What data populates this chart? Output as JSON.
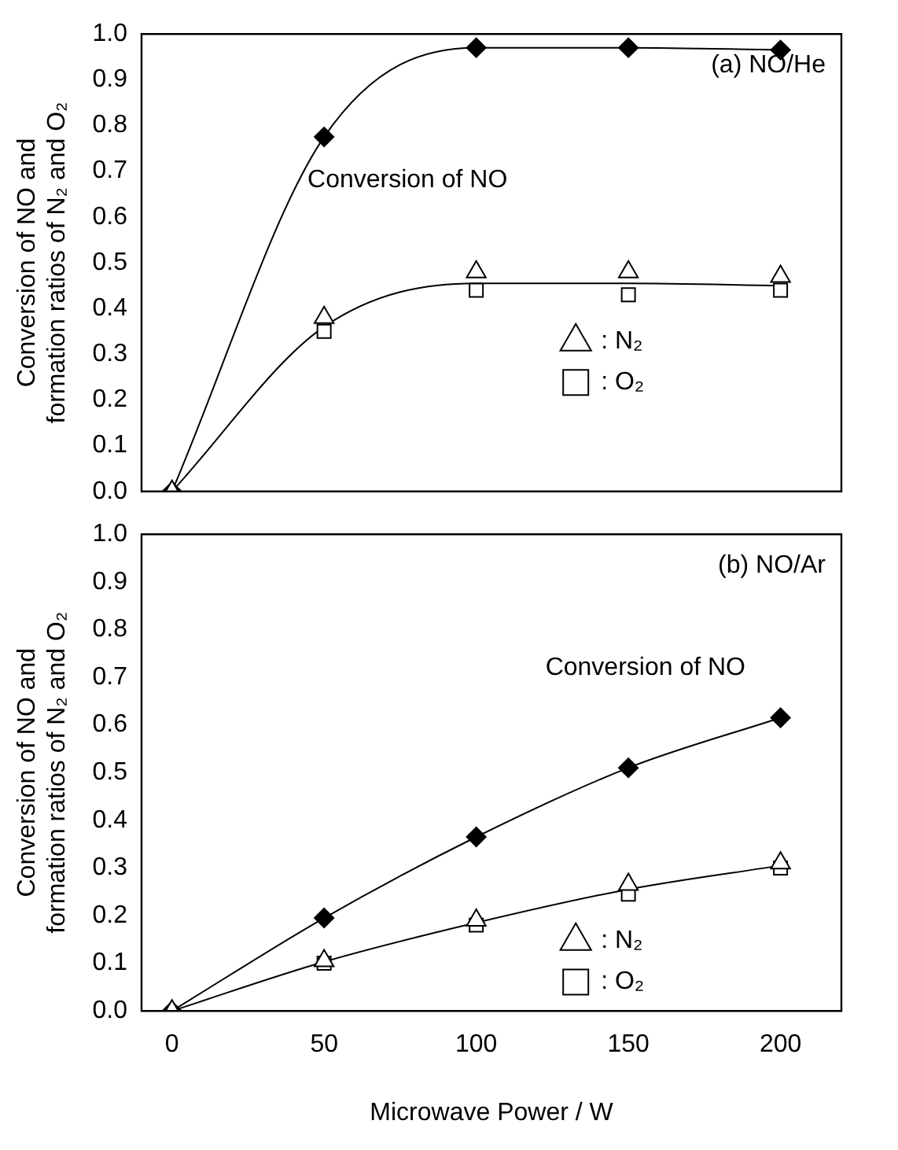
{
  "chart_data": [
    {
      "type": "line",
      "title": "(a) NO/He",
      "ylabel": "Conversion of NO and formation ratios of N₂ and O₂",
      "x": [
        0,
        50,
        100,
        150,
        200
      ],
      "xlim": [
        -10,
        220
      ],
      "xticks": [
        0,
        50,
        100,
        150,
        200
      ],
      "ylim": [
        0,
        1.0
      ],
      "yticks": [
        {
          "value": 0,
          "label": "0.0"
        },
        {
          "value": 0.1,
          "label": "0.1"
        },
        {
          "value": 0.2,
          "label": "0.2"
        },
        {
          "value": 0.3,
          "label": "0.3"
        },
        {
          "value": 0.4,
          "label": "0.4"
        },
        {
          "value": 0.5,
          "label": "0.5"
        },
        {
          "value": 0.6,
          "label": "0.6"
        },
        {
          "value": 0.7,
          "label": "0.7"
        },
        {
          "value": 0.8,
          "label": "0.8"
        },
        {
          "value": 0.9,
          "label": "0.9"
        },
        {
          "value": 1.0,
          "label": "1.0"
        }
      ],
      "tick_labels": "y",
      "legend": "right",
      "annotations": [
        "Conversion of NO"
      ],
      "series": [
        {
          "color": "#000000",
          "marker": "diamond",
          "values": [
            0,
            0.775,
            0.97,
            0.97,
            0.965
          ]
        },
        {
          "type": "scatter",
          "name": ": N₂",
          "color": "#000000",
          "marker": "triangle",
          "values": [
            0,
            0.38,
            0.48,
            0.48,
            0.47
          ]
        },
        {
          "type": "scatter",
          "name": ": O₂",
          "color": "#000000",
          "marker": "square",
          "values": [
            null,
            0.35,
            0.44,
            0.43,
            0.44
          ]
        },
        {
          "color": "#000000",
          "marker": "none",
          "values": [
            0,
            0.36,
            0.455,
            0.455,
            0.45
          ]
        }
      ]
    },
    {
      "type": "line",
      "title": "(b) NO/Ar",
      "ylabel": "Conversion of NO and formation ratios of N₂ and O₂",
      "xlabel": "Microwave Power / W",
      "x": [
        0,
        50,
        100,
        150,
        200
      ],
      "xlim": [
        -10,
        220
      ],
      "xticks": [
        0,
        50,
        100,
        150,
        200
      ],
      "ylim": [
        0,
        1.0
      ],
      "yticks": [
        {
          "value": 0,
          "label": "0.0"
        },
        {
          "value": 0.1,
          "label": "0.1"
        },
        {
          "value": 0.2,
          "label": "0.2"
        },
        {
          "value": 0.3,
          "label": "0.3"
        },
        {
          "value": 0.4,
          "label": "0.4"
        },
        {
          "value": 0.5,
          "label": "0.5"
        },
        {
          "value": 0.6,
          "label": "0.6"
        },
        {
          "value": 0.7,
          "label": "0.7"
        },
        {
          "value": 0.8,
          "label": "0.8"
        },
        {
          "value": 0.9,
          "label": "0.9"
        },
        {
          "value": 1.0,
          "label": "1.0"
        }
      ],
      "legend": "bottom right",
      "annotations": [
        "Conversion of NO"
      ],
      "series": [
        {
          "color": "#000000",
          "marker": "diamond",
          "values": [
            0,
            0.195,
            0.365,
            0.51,
            0.615
          ]
        },
        {
          "type": "scatter",
          "name": ": N₂",
          "color": "#000000",
          "marker": "triangle",
          "values": [
            0,
            0.105,
            0.19,
            0.265,
            0.31
          ]
        },
        {
          "type": "scatter",
          "name": ": O₂",
          "color": "#000000",
          "marker": "square",
          "values": [
            null,
            0.1,
            0.18,
            0.245,
            0.3
          ]
        },
        {
          "color": "#000000",
          "marker": "none",
          "values": [
            0,
            0.103,
            0.185,
            0.255,
            0.305
          ]
        }
      ]
    }
  ]
}
